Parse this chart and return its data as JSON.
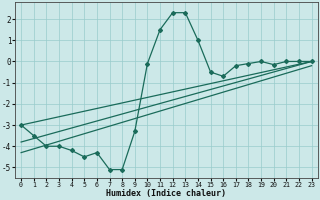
{
  "xlabel": "Humidex (Indice chaleur)",
  "bg_color": "#cce8e8",
  "grid_color": "#99cccc",
  "line_color": "#1a6b5a",
  "xlim": [
    -0.5,
    23.5
  ],
  "ylim": [
    -5.5,
    2.8
  ],
  "xticks": [
    0,
    1,
    2,
    3,
    4,
    5,
    6,
    7,
    8,
    9,
    10,
    11,
    12,
    13,
    14,
    15,
    16,
    17,
    18,
    19,
    20,
    21,
    22,
    23
  ],
  "yticks": [
    -5,
    -4,
    -3,
    -2,
    -1,
    0,
    1,
    2
  ],
  "main_x": [
    0,
    1,
    2,
    3,
    4,
    5,
    6,
    7,
    8,
    9,
    10,
    11,
    12,
    13,
    14,
    15,
    16,
    17,
    18,
    19,
    20,
    21,
    22,
    23
  ],
  "main_y": [
    -3.0,
    -3.5,
    -4.0,
    -4.0,
    -4.2,
    -4.5,
    -4.3,
    -5.1,
    -5.1,
    -3.3,
    -0.1,
    1.5,
    2.3,
    2.3,
    1.0,
    -0.5,
    -0.7,
    -0.2,
    -0.1,
    0.0,
    -0.15,
    0.0,
    0.0,
    0.0
  ],
  "line1_x": [
    0,
    23
  ],
  "line1_y": [
    -3.0,
    0.0
  ],
  "line2_x": [
    0,
    23
  ],
  "line2_y": [
    -3.8,
    0.0
  ],
  "line3_x": [
    0,
    23
  ],
  "line3_y": [
    -4.3,
    -0.2
  ]
}
